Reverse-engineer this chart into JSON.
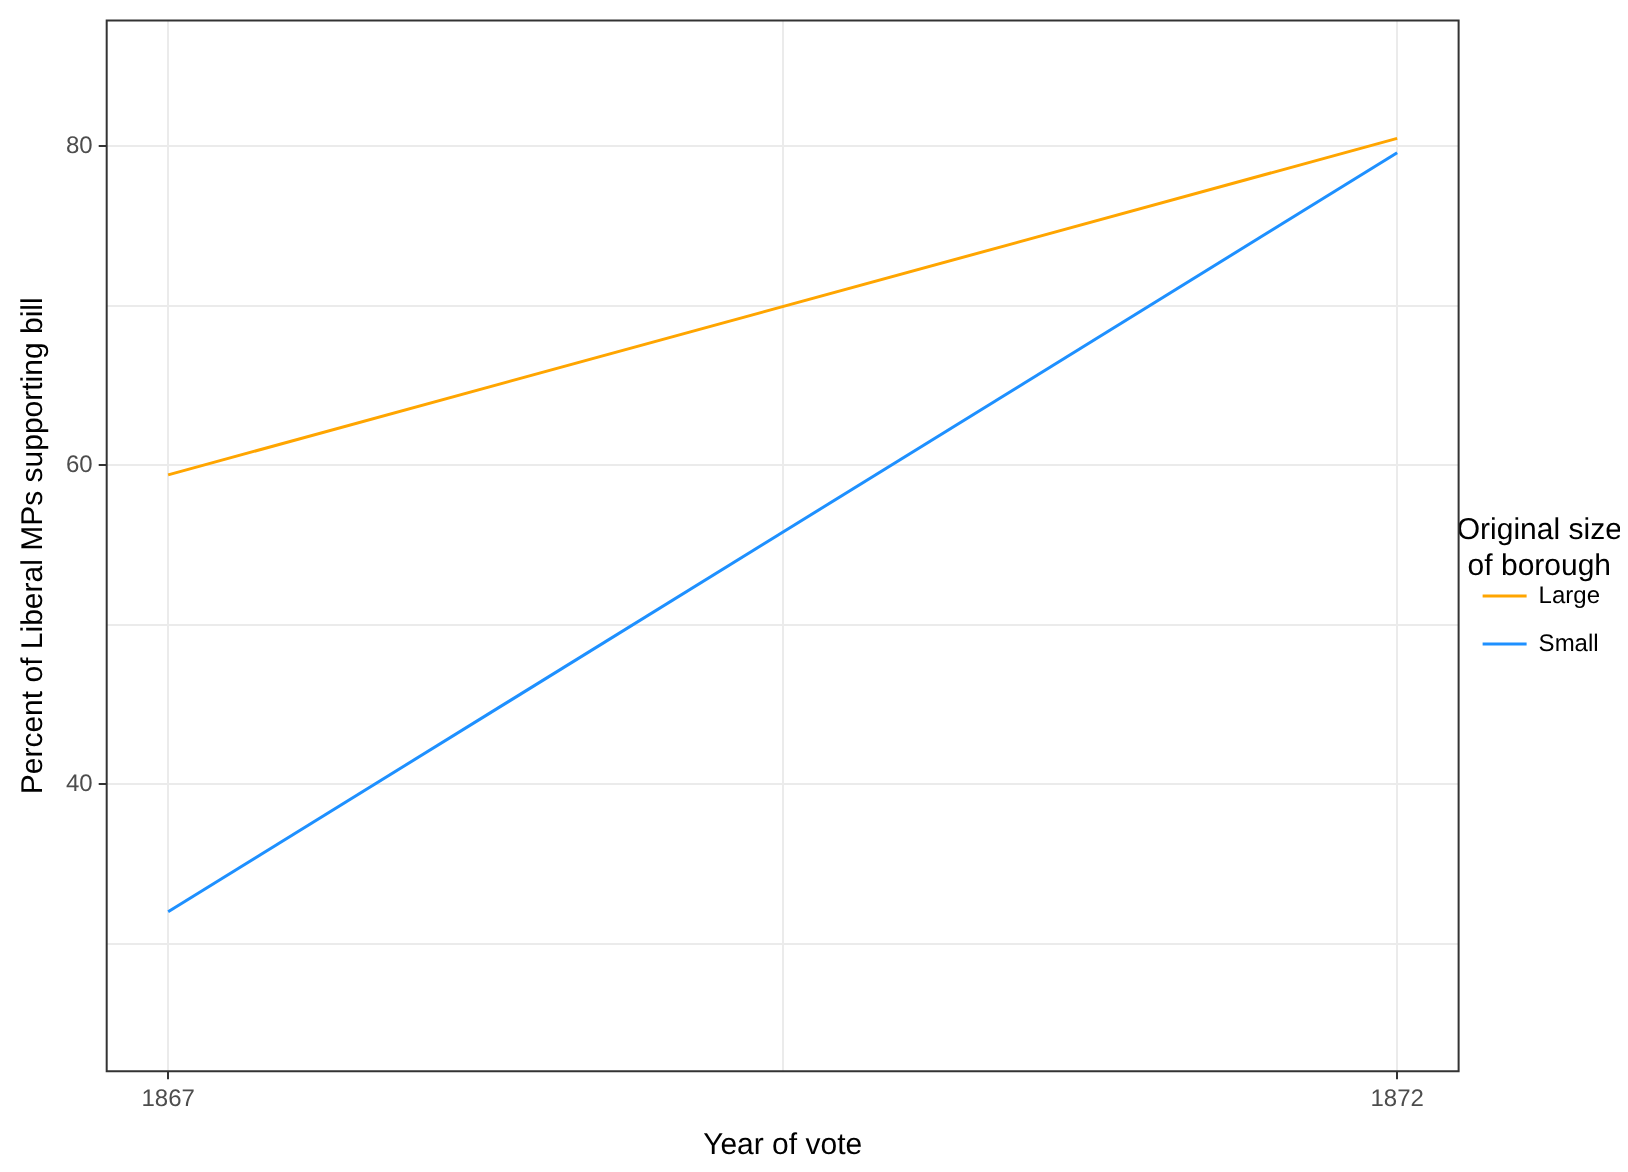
{
  "chart_data": {
    "type": "line",
    "xlabel": "Year of vote",
    "ylabel": "Percent of Liberal MPs supporting bill",
    "legend_title": "Original size\nof borough",
    "x": [
      1867,
      1872
    ],
    "series": [
      {
        "name": "Large",
        "color": "#ffa500",
        "values": [
          59.4,
          80.5
        ]
      },
      {
        "name": "Small",
        "color": "#1e90ff",
        "values": [
          32.0,
          79.6
        ]
      }
    ],
    "xlim": [
      1866.75,
      1872.25
    ],
    "xticks": [
      1867,
      {
        "value": 1869.5,
        "label": null
      },
      1872
    ],
    "ylim": [
      22,
      87.9
    ],
    "yticks": [
      {
        "value": 30,
        "label": null
      },
      40,
      {
        "value": 50,
        "label": null
      },
      60,
      {
        "value": 70,
        "label": null
      },
      80
    ],
    "grid": true,
    "legend": "right",
    "marker": "none",
    "line_style": "solid"
  }
}
